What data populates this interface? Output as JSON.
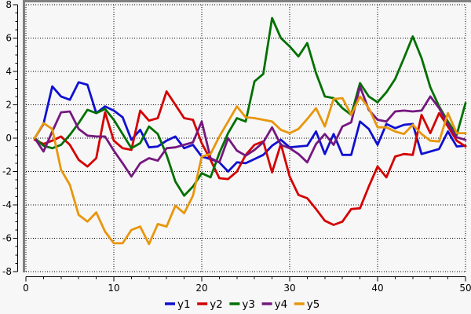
{
  "colors": {
    "background": "#f7f7f7",
    "frame_gray": "#808080",
    "axis_black": "#000000",
    "grid_black": "#000000",
    "text": "#000000"
  },
  "chart_data": {
    "type": "line",
    "title": "",
    "xlabel": "",
    "ylabel": "",
    "grid": "dotted",
    "legend_position": "bottom-center",
    "xlim": [
      0,
      50
    ],
    "ylim": [
      -8,
      8
    ],
    "x_ticks": [
      0,
      10,
      20,
      30,
      40,
      50
    ],
    "x_minor_step": 2,
    "y_ticks": [
      -8,
      -6,
      -4,
      -2,
      0,
      2,
      4,
      6,
      8
    ],
    "y_minor_step": 0.5,
    "x_start": 1,
    "x_step": 1,
    "series": [
      {
        "name": "y1",
        "color": "#1010d0",
        "values": [
          0.0,
          0.85,
          3.1,
          2.5,
          2.3,
          3.35,
          3.2,
          1.5,
          1.9,
          1.65,
          1.25,
          -0.1,
          0.5,
          -0.55,
          -0.5,
          -0.15,
          0.1,
          -0.6,
          -0.4,
          -1.1,
          -1.25,
          -1.45,
          -2.0,
          -1.45,
          -1.5,
          -1.25,
          -1.0,
          -0.45,
          -0.1,
          -0.55,
          -0.5,
          -0.45,
          0.4,
          -0.95,
          0.25,
          -1.0,
          -1.0,
          1.0,
          0.55,
          -0.4,
          0.85,
          0.6,
          0.8,
          0.85,
          -0.95,
          -0.8,
          -0.65,
          0.4,
          -0.5,
          -0.45
        ]
      },
      {
        "name": "y2",
        "color": "#d40000",
        "values": [
          -0.1,
          -0.35,
          -0.15,
          0.1,
          -0.4,
          -1.3,
          -1.7,
          -1.2,
          1.55,
          -0.15,
          -0.6,
          -0.7,
          1.65,
          1.05,
          1.2,
          2.8,
          2.0,
          1.2,
          1.1,
          -0.3,
          -1.3,
          -2.4,
          -2.45,
          -2.0,
          -1.0,
          -0.4,
          -0.2,
          -2.05,
          -0.35,
          -2.3,
          -3.4,
          -3.6,
          -4.25,
          -4.95,
          -5.2,
          -5.0,
          -4.25,
          -4.2,
          -2.9,
          -1.7,
          -2.35,
          -1.1,
          -0.95,
          -1.0,
          1.4,
          0.3,
          1.5,
          0.7,
          -0.15,
          -0.5
        ]
      },
      {
        "name": "y3",
        "color": "#007000",
        "values": [
          0.0,
          -0.45,
          -0.6,
          -0.4,
          0.2,
          0.9,
          1.7,
          1.5,
          1.75,
          1.1,
          0.25,
          -0.6,
          -0.3,
          0.7,
          0.25,
          -1.0,
          -2.6,
          -3.45,
          -2.9,
          -2.1,
          -2.35,
          -0.9,
          0.3,
          1.2,
          1.0,
          3.4,
          3.85,
          7.2,
          6.0,
          5.5,
          4.9,
          5.7,
          3.9,
          2.5,
          2.4,
          1.8,
          1.4,
          3.3,
          2.5,
          2.15,
          2.75,
          3.55,
          4.8,
          6.1,
          4.8,
          3.05,
          1.9,
          1.0,
          0.2,
          2.1
        ]
      },
      {
        "name": "y4",
        "color": "#75187f",
        "values": [
          0.0,
          -0.8,
          0.4,
          1.55,
          1.6,
          0.55,
          0.15,
          0.1,
          0.1,
          -0.75,
          -1.5,
          -2.3,
          -1.5,
          -1.2,
          -1.35,
          -0.6,
          -0.55,
          -0.4,
          -0.25,
          1.0,
          -1.2,
          -1.45,
          0.0,
          -0.75,
          -1.05,
          -0.7,
          -0.25,
          0.65,
          -0.4,
          -0.6,
          -0.95,
          -1.45,
          -0.35,
          0.25,
          -0.4,
          0.7,
          0.95,
          3.1,
          1.7,
          1.1,
          1.0,
          1.6,
          1.65,
          1.6,
          1.65,
          2.5,
          1.8,
          0.85,
          0.05,
          -0.1
        ]
      },
      {
        "name": "y5",
        "color": "#e8960c",
        "values": [
          0.0,
          0.9,
          0.55,
          -1.9,
          -2.8,
          -4.6,
          -5.0,
          -4.45,
          -5.6,
          -6.3,
          -6.3,
          -5.5,
          -5.3,
          -6.35,
          -5.15,
          -5.3,
          -4.05,
          -4.5,
          -3.45,
          -1.1,
          -0.95,
          0.1,
          1.0,
          1.9,
          1.25,
          1.2,
          1.1,
          1.0,
          0.5,
          0.3,
          0.55,
          1.15,
          1.8,
          0.7,
          2.35,
          2.4,
          1.4,
          2.5,
          1.8,
          0.65,
          0.65,
          0.4,
          0.25,
          0.8,
          0.25,
          -0.15,
          -0.2,
          1.5,
          0.3,
          0.3
        ]
      }
    ]
  }
}
